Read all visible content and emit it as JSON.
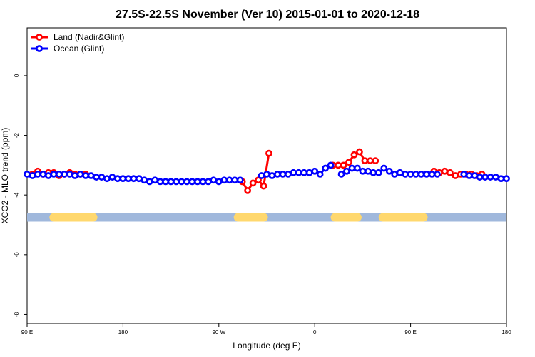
{
  "chart_data": {
    "type": "line",
    "title": "27.5S-22.5S November (Ver 10)   2015-01-01 to 2020-12-18",
    "xlabel": "Longitude (deg E)",
    "ylabel": "XCO2 - MLO trend (ppm)",
    "x_ticks": [
      {
        "value": 90,
        "label": "90 E"
      },
      {
        "value": 180,
        "label": "180"
      },
      {
        "value": 270,
        "label": "90 W"
      },
      {
        "value": 360,
        "label": "0"
      },
      {
        "value": 450,
        "label": "90 E"
      },
      {
        "value": 540,
        "label": "180"
      }
    ],
    "y_ticks": [
      0,
      -2,
      -4,
      -6,
      -8
    ],
    "xlim": [
      90,
      540
    ],
    "ylim": [
      -8.3,
      1.6
    ],
    "grid": false,
    "legend_position": "top-left",
    "series": [
      {
        "name": "Land (Nadir&Glint)",
        "color": "#ff0000",
        "segments": [
          {
            "x": [
              95,
              100,
              105,
              110,
              115,
              120,
              125,
              130,
              135,
              140,
              145
            ],
            "y": [
              -3.3,
              -3.2,
              -3.3,
              -3.25,
              -3.25,
              -3.35,
              -3.3,
              -3.25,
              -3.3,
              -3.3,
              -3.3
            ]
          },
          {
            "x": [
              292,
              297,
              302,
              307,
              312,
              317
            ],
            "y": [
              -3.55,
              -3.85,
              -3.6,
              -3.5,
              -3.7,
              -2.6
            ]
          },
          {
            "x": [
              377,
              382,
              387,
              392,
              397,
              402,
              407,
              412,
              417
            ],
            "y": [
              -3.0,
              -3.0,
              -3.0,
              -2.9,
              -2.65,
              -2.55,
              -2.85,
              -2.85,
              -2.85
            ]
          },
          {
            "x": [
              472,
              477,
              482,
              487,
              492,
              497,
              502,
              507,
              512,
              517
            ],
            "y": [
              -3.2,
              -3.25,
              -3.2,
              -3.25,
              -3.35,
              -3.3,
              -3.3,
              -3.3,
              -3.35,
              -3.3
            ]
          }
        ]
      },
      {
        "name": "Ocean (Glint)",
        "color": "#0000ff",
        "segments": [
          {
            "x": [
              90,
              95,
              100,
              105,
              110,
              115,
              120,
              125,
              130,
              135,
              140,
              145,
              150,
              155,
              160,
              165,
              170,
              175,
              180,
              185,
              190,
              195,
              200,
              205,
              210,
              215,
              220,
              225,
              230,
              235,
              240,
              245,
              250,
              255,
              260,
              265,
              270,
              275,
              280,
              285,
              290
            ],
            "y": [
              -3.3,
              -3.35,
              -3.3,
              -3.3,
              -3.35,
              -3.3,
              -3.3,
              -3.3,
              -3.3,
              -3.35,
              -3.3,
              -3.35,
              -3.35,
              -3.4,
              -3.4,
              -3.45,
              -3.4,
              -3.45,
              -3.45,
              -3.45,
              -3.45,
              -3.45,
              -3.5,
              -3.55,
              -3.5,
              -3.55,
              -3.55,
              -3.55,
              -3.55,
              -3.55,
              -3.55,
              -3.55,
              -3.55,
              -3.55,
              -3.55,
              -3.5,
              -3.55,
              -3.5,
              -3.5,
              -3.5,
              -3.5
            ]
          },
          {
            "x": [
              310,
              315,
              320,
              325,
              330,
              335,
              340,
              345,
              350,
              355,
              360,
              365,
              370,
              375
            ],
            "y": [
              -3.35,
              -3.3,
              -3.35,
              -3.3,
              -3.3,
              -3.3,
              -3.25,
              -3.25,
              -3.25,
              -3.25,
              -3.2,
              -3.3,
              -3.1,
              -3.0
            ]
          },
          {
            "x": [
              385,
              390,
              395,
              400,
              405,
              410,
              415,
              420,
              425,
              430,
              435,
              440,
              445,
              450,
              455,
              460,
              465,
              470,
              475
            ],
            "y": [
              -3.3,
              -3.2,
              -3.1,
              -3.1,
              -3.2,
              -3.2,
              -3.25,
              -3.25,
              -3.1,
              -3.2,
              -3.3,
              -3.25,
              -3.3,
              -3.3,
              -3.3,
              -3.3,
              -3.3,
              -3.3,
              -3.3
            ]
          },
          {
            "x": [
              500,
              505,
              510,
              515,
              520,
              525,
              530,
              535,
              540
            ],
            "y": [
              -3.3,
              -3.35,
              -3.35,
              -3.4,
              -3.4,
              -3.4,
              -3.4,
              -3.45,
              -3.45
            ]
          }
        ]
      }
    ],
    "surface_bar": {
      "y": -4.75,
      "ocean_color": "#a0b8dc",
      "land_color": "#ffd86e",
      "land_ranges": [
        [
          115,
          152
        ],
        [
          288,
          312
        ],
        [
          379,
          400
        ],
        [
          424,
          462
        ]
      ]
    }
  }
}
